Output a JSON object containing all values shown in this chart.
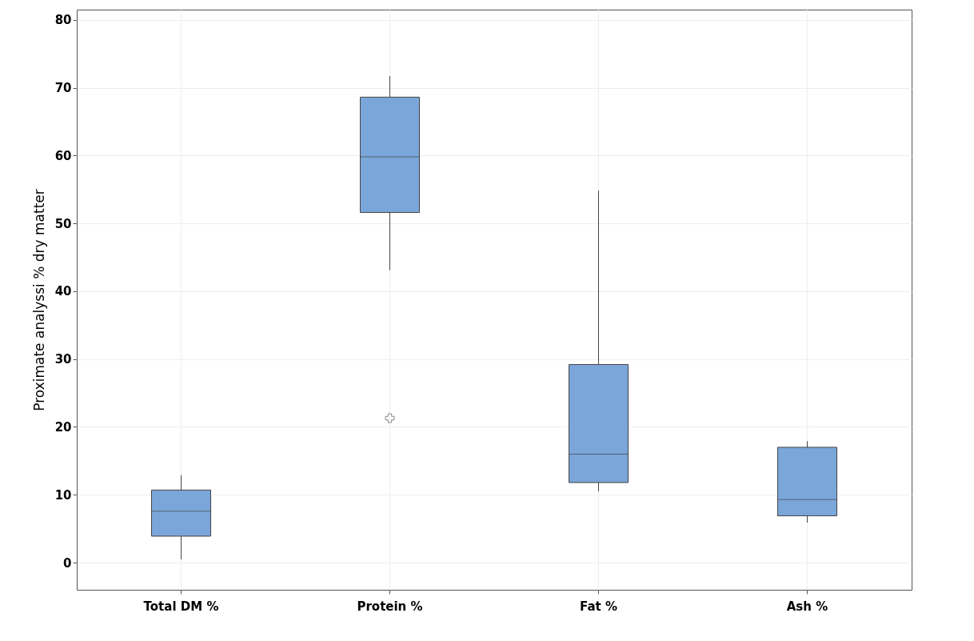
{
  "chart_data": {
    "type": "box",
    "ylabel": "Proximate analyssi % dry matter",
    "categories": [
      "Total DM %",
      "Protein %",
      "Fat %",
      "Ash %"
    ],
    "boxes": [
      {
        "low": 0.5,
        "q1": 3.9,
        "median": 7.6,
        "q3": 10.7,
        "high": 12.9
      },
      {
        "low": 43.1,
        "q1": 51.6,
        "median": 59.8,
        "q3": 68.6,
        "high": 71.7,
        "outliers": [
          21.3
        ]
      },
      {
        "low": 10.5,
        "q1": 11.8,
        "median": 16.0,
        "q3": 29.2,
        "high": 54.8
      },
      {
        "low": 5.9,
        "q1": 6.9,
        "median": 9.3,
        "q3": 17.0,
        "high": 17.9
      }
    ],
    "color": "#7ba6da",
    "ylim": [
      -4,
      81.5
    ],
    "yticks": [
      0,
      10,
      20,
      30,
      40,
      50,
      60,
      70,
      80
    ],
    "grid": true
  }
}
